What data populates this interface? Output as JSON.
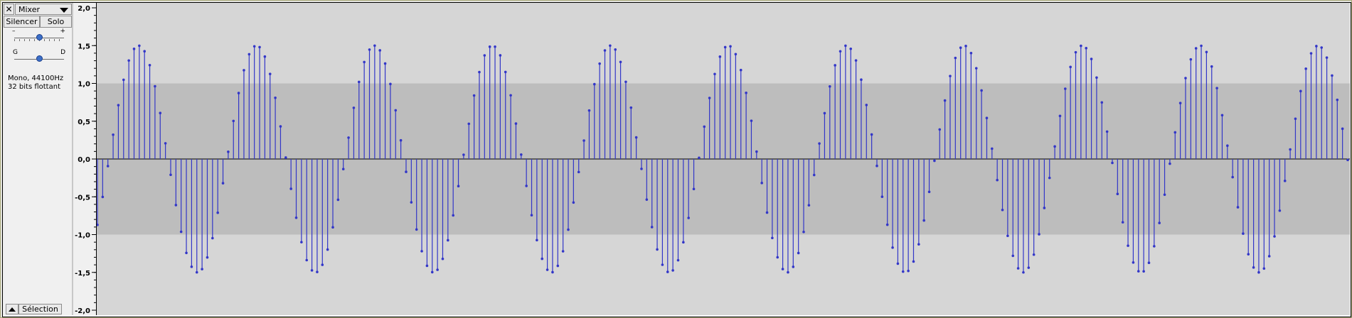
{
  "track_controls": {
    "close_label": "✕",
    "track_name": "Mixer",
    "mute_label": "Silencer",
    "solo_label": "Solo",
    "gain": {
      "min_label": "–",
      "max_label": "+"
    },
    "pan": {
      "left_label": "G",
      "right_label": "D"
    },
    "format_line1": "Mono, 44100Hz",
    "format_line2": "32 bits flottant",
    "select_label": "Sélection"
  },
  "ruler": {
    "ticks": [
      "2,0",
      "1,5",
      "1,0",
      "0,5",
      "0,0",
      "-0,5",
      "-1,0",
      "-1,5",
      "-2,0"
    ]
  },
  "colors": {
    "wave": "#3236c8",
    "clip_band": "#bdbdbd",
    "outer_band": "#d6d6d6"
  },
  "waveform": {
    "amplitude": 1.5,
    "cycles": 10.6,
    "samples": 240,
    "range": [
      -2,
      2
    ],
    "display_mode": "stem"
  }
}
